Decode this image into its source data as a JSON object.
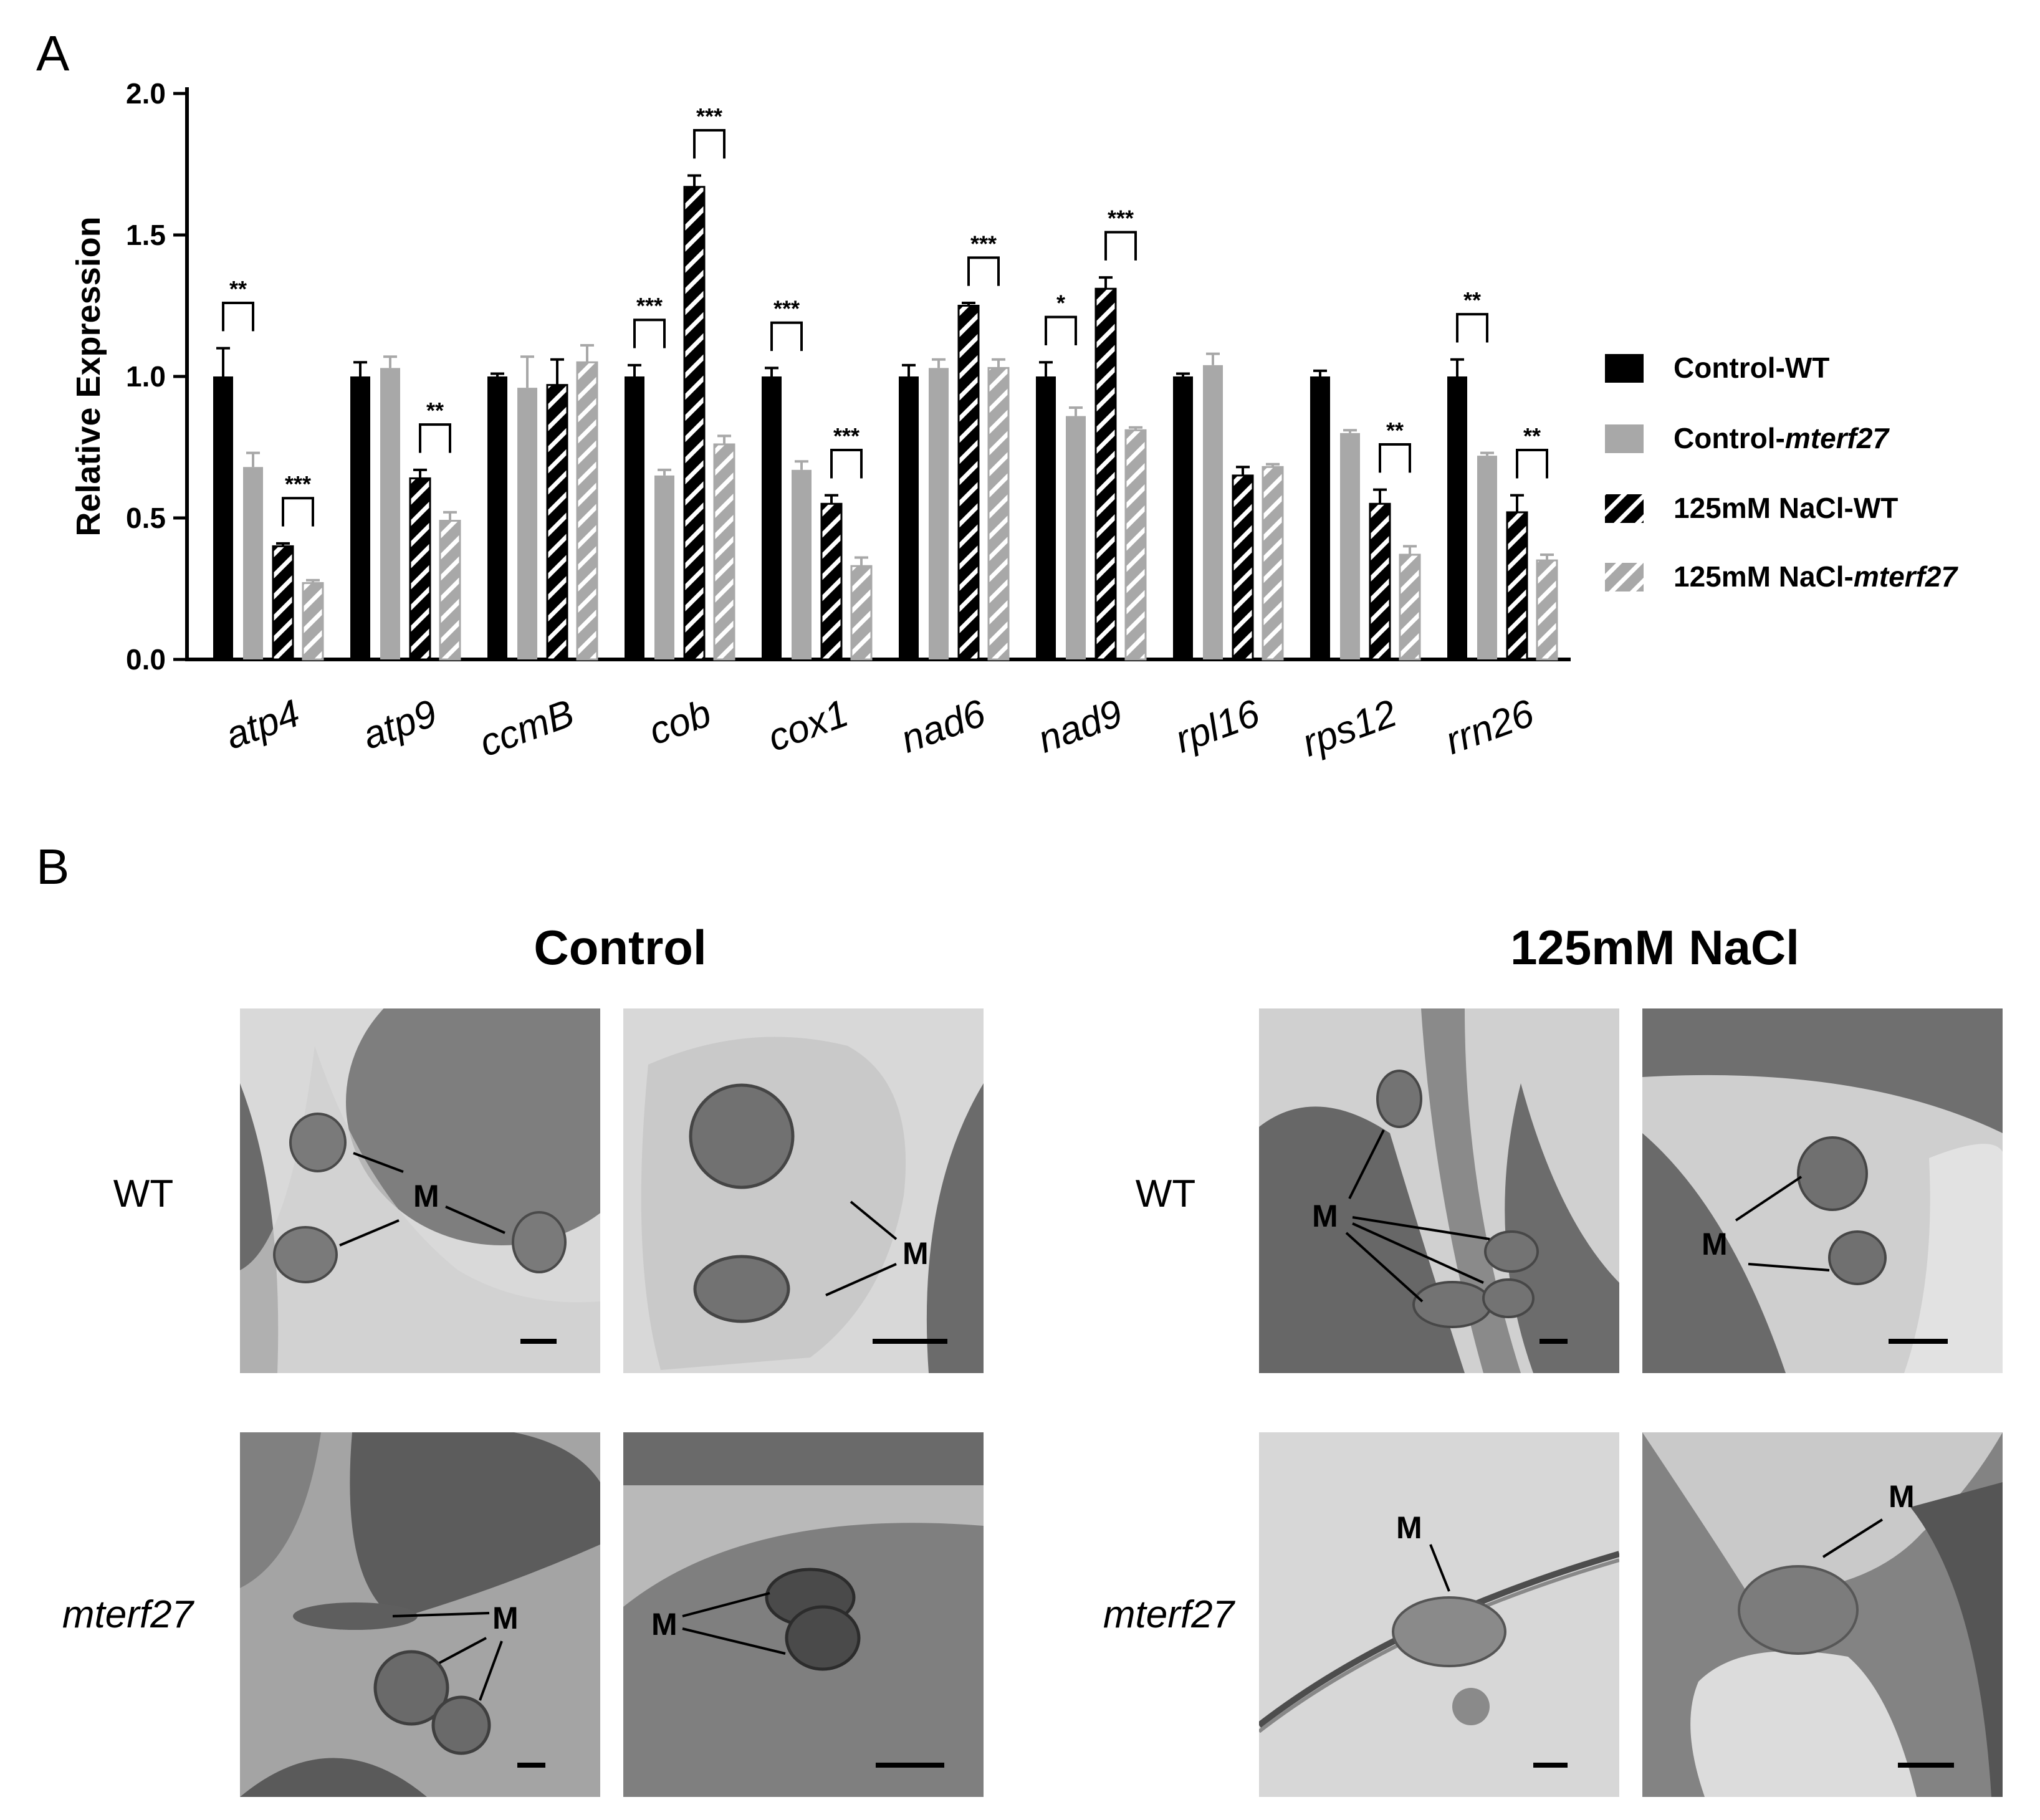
{
  "panel_a": {
    "letter": "A"
  },
  "panel_b": {
    "letter": "B"
  },
  "chart_data": {
    "type": "bar",
    "ylabel": "Relative Expression",
    "ylim": [
      0,
      2.0
    ],
    "yticks": [
      "0.0",
      "0.5",
      "1.0",
      "1.5",
      "2.0"
    ],
    "categories": [
      "atp4",
      "atp9",
      "ccmB",
      "cob",
      "cox1",
      "nad6",
      "nad9",
      "rpl16",
      "rps12",
      "rrn26"
    ],
    "legend_position": "right",
    "series": [
      {
        "name_parts": [
          "Control-WT"
        ],
        "name_italic": [
          false
        ],
        "color": "#000000",
        "hatched": false,
        "values": [
          1.0,
          1.0,
          1.0,
          1.0,
          1.0,
          1.0,
          1.0,
          1.0,
          1.0,
          1.0
        ],
        "errors": [
          0.1,
          0.05,
          0.01,
          0.04,
          0.03,
          0.04,
          0.05,
          0.01,
          0.02,
          0.06
        ]
      },
      {
        "name_parts": [
          "Control-",
          "mterf27"
        ],
        "name_italic": [
          false,
          true
        ],
        "color": "#a8a8a8",
        "hatched": false,
        "values": [
          0.68,
          1.03,
          0.96,
          0.65,
          0.67,
          1.03,
          0.86,
          1.04,
          0.8,
          0.72
        ],
        "errors": [
          0.05,
          0.04,
          0.11,
          0.02,
          0.03,
          0.03,
          0.03,
          0.04,
          0.01,
          0.01
        ]
      },
      {
        "name_parts": [
          "125mM NaCl-WT"
        ],
        "name_italic": [
          false
        ],
        "color": "#000000",
        "hatched": true,
        "values": [
          0.4,
          0.64,
          0.97,
          1.67,
          0.55,
          1.25,
          1.31,
          0.65,
          0.55,
          0.52
        ],
        "errors": [
          0.01,
          0.03,
          0.09,
          0.04,
          0.03,
          0.01,
          0.04,
          0.03,
          0.05,
          0.06
        ]
      },
      {
        "name_parts": [
          "125mM NaCl-",
          "mterf27"
        ],
        "name_italic": [
          false,
          true
        ],
        "color": "#a8a8a8",
        "hatched": true,
        "values": [
          0.27,
          0.49,
          1.05,
          0.76,
          0.33,
          1.03,
          0.81,
          0.68,
          0.37,
          0.35
        ],
        "errors": [
          0.01,
          0.03,
          0.06,
          0.03,
          0.03,
          0.03,
          0.01,
          0.01,
          0.03,
          0.02
        ]
      }
    ],
    "significance": [
      {
        "category": 0,
        "pair": [
          0,
          1
        ],
        "label": "**"
      },
      {
        "category": 0,
        "pair": [
          2,
          3
        ],
        "label": "***"
      },
      {
        "category": 1,
        "pair": [
          2,
          3
        ],
        "label": "**"
      },
      {
        "category": 3,
        "pair": [
          0,
          1
        ],
        "label": "***"
      },
      {
        "category": 3,
        "pair": [
          2,
          3
        ],
        "label": "***"
      },
      {
        "category": 4,
        "pair": [
          0,
          1
        ],
        "label": "***"
      },
      {
        "category": 4,
        "pair": [
          2,
          3
        ],
        "label": "***"
      },
      {
        "category": 5,
        "pair": [
          2,
          3
        ],
        "label": "***"
      },
      {
        "category": 6,
        "pair": [
          0,
          1
        ],
        "label": "*"
      },
      {
        "category": 6,
        "pair": [
          2,
          3
        ],
        "label": "***"
      },
      {
        "category": 8,
        "pair": [
          2,
          3
        ],
        "label": "**"
      },
      {
        "category": 9,
        "pair": [
          0,
          1
        ],
        "label": "**"
      },
      {
        "category": 9,
        "pair": [
          2,
          3
        ],
        "label": "**"
      }
    ]
  },
  "micrographs": {
    "columns": [
      "Control",
      "125mM NaCl"
    ],
    "rows": [
      "WT",
      "mterf27"
    ],
    "mito_label": "M",
    "panels": [
      {
        "condition": "Control",
        "genotype": "WT",
        "label": "M"
      },
      {
        "condition": "Control",
        "genotype": "WT",
        "label": "M"
      },
      {
        "condition": "Control",
        "genotype": "mterf27",
        "label": "M"
      },
      {
        "condition": "Control",
        "genotype": "mterf27",
        "label": "M"
      },
      {
        "condition": "125mM NaCl",
        "genotype": "WT",
        "label": "M"
      },
      {
        "condition": "125mM NaCl",
        "genotype": "WT",
        "label": "M"
      },
      {
        "condition": "125mM NaCl",
        "genotype": "mterf27",
        "label": "M"
      },
      {
        "condition": "125mM NaCl",
        "genotype": "mterf27",
        "label": "M"
      }
    ]
  }
}
